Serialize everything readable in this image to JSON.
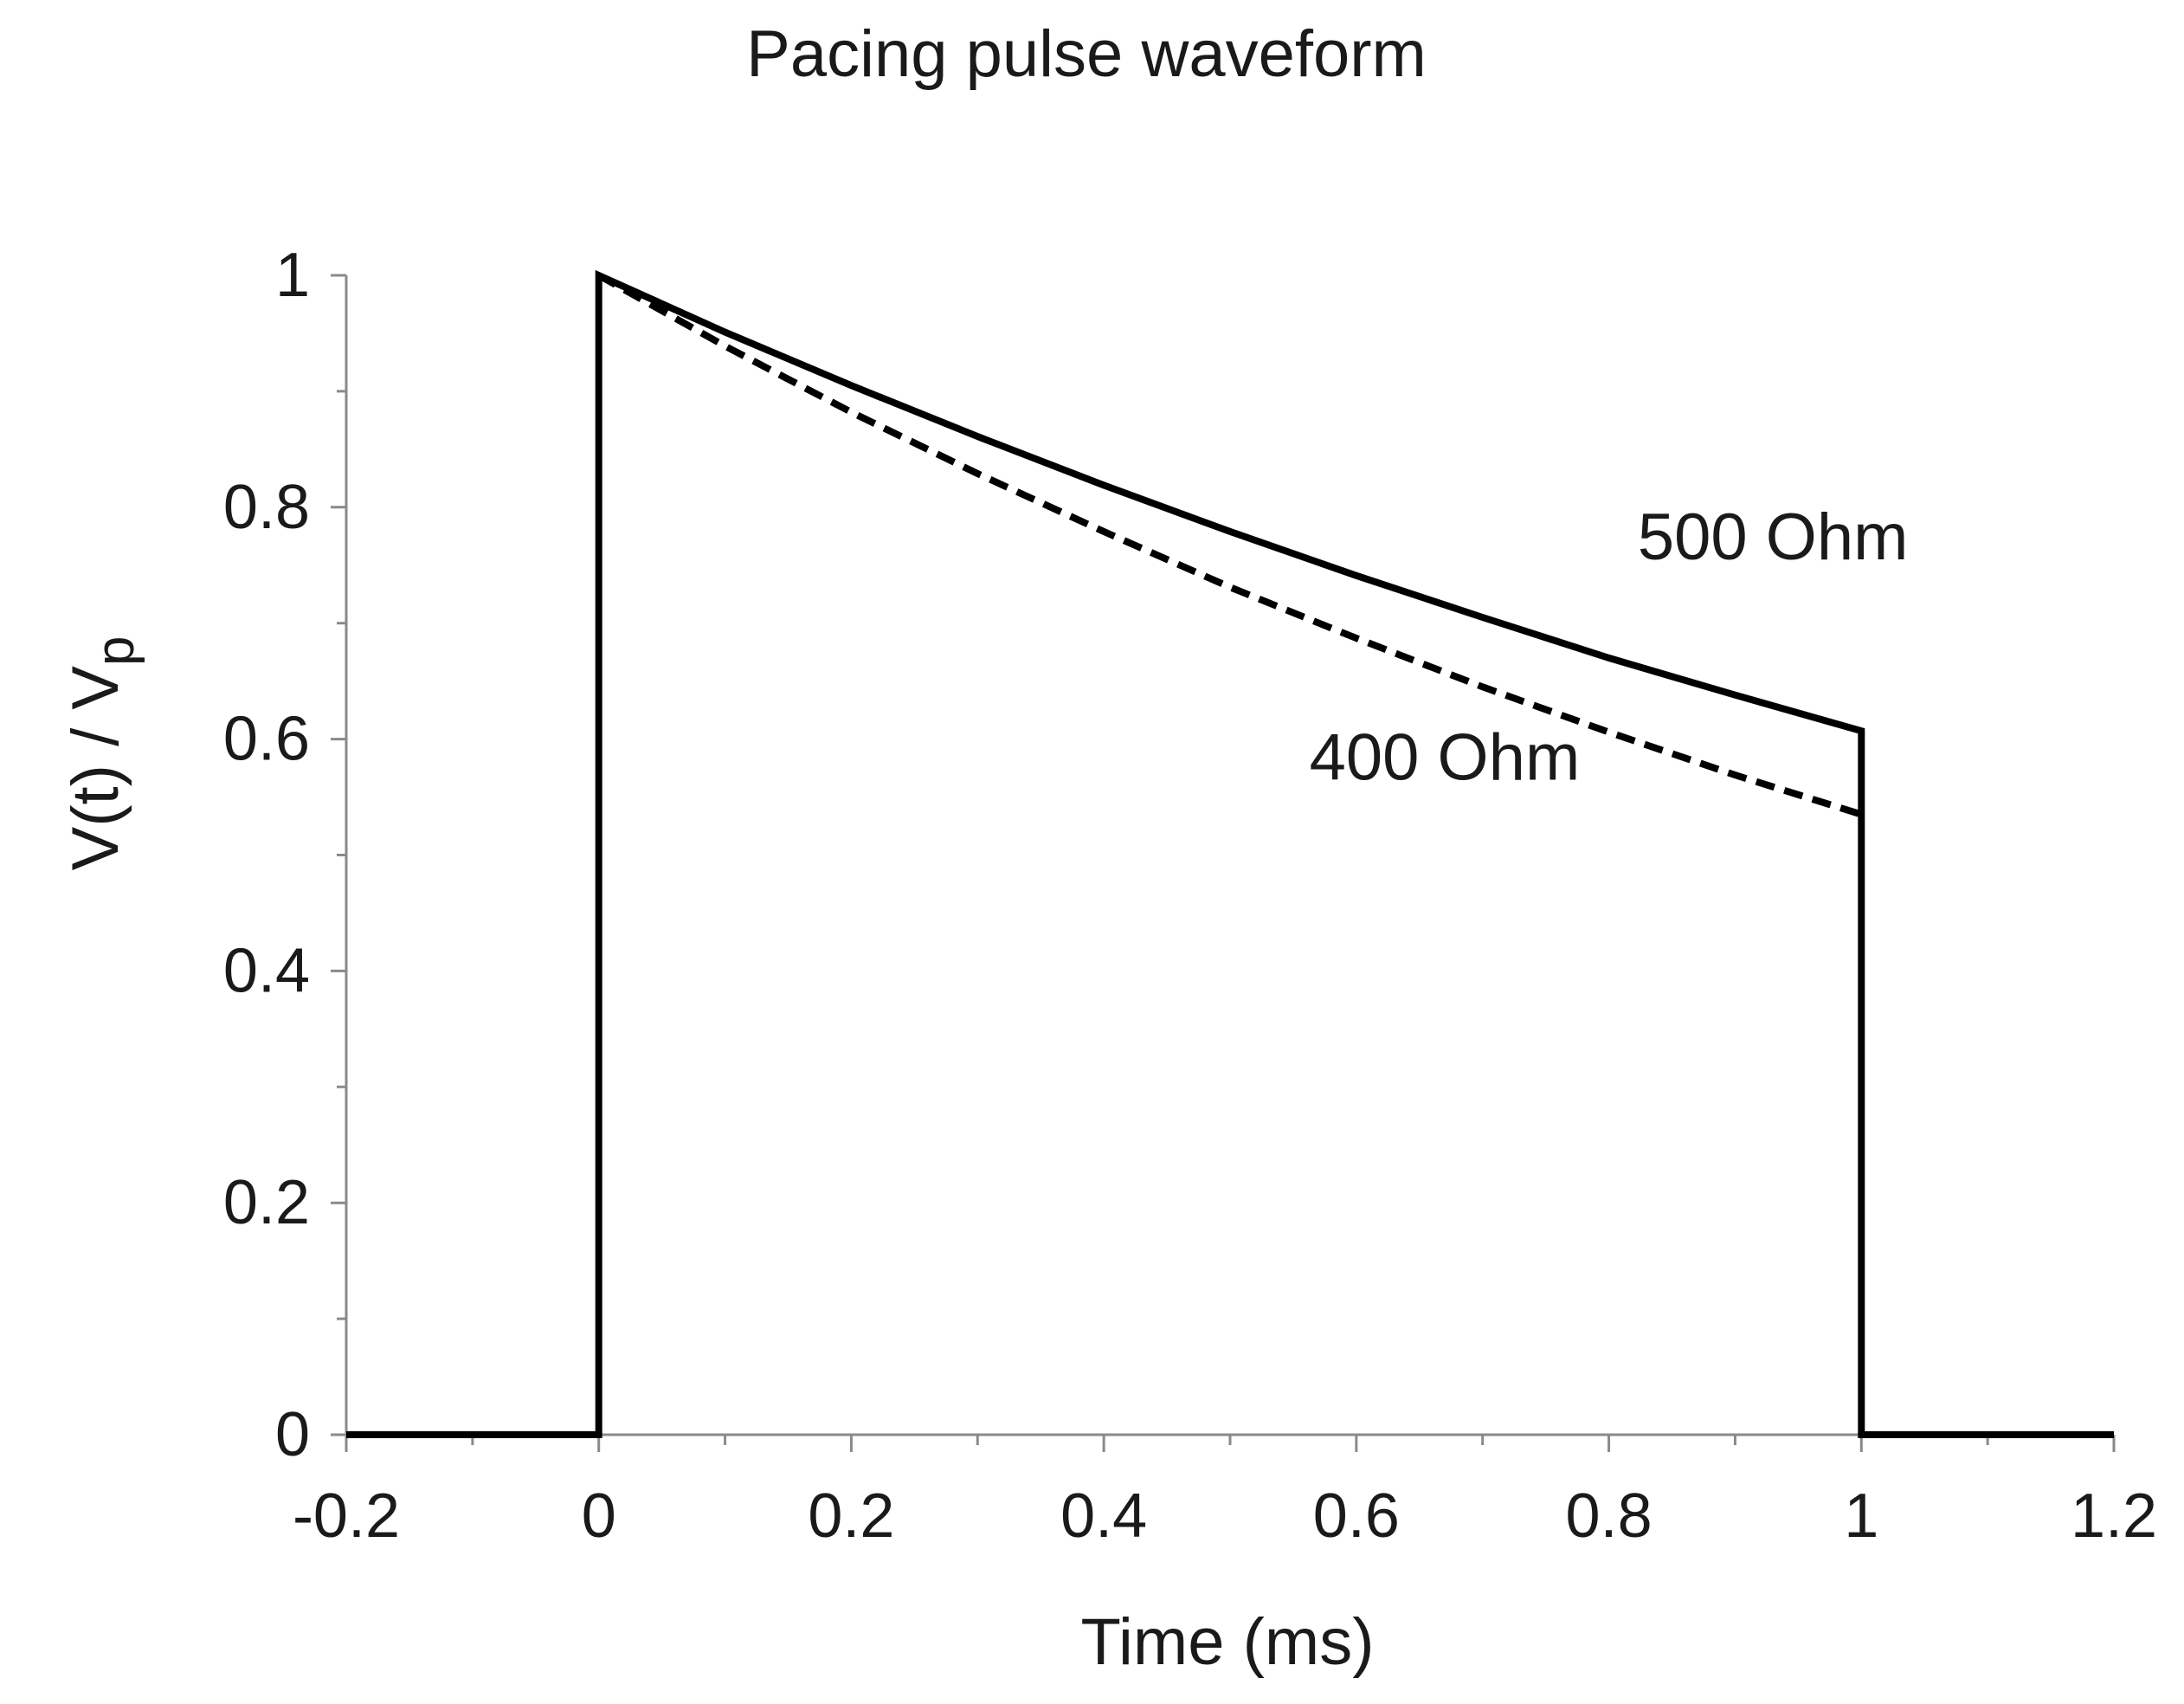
{
  "chart_data": {
    "type": "line",
    "title": "Pacing pulse waveform",
    "xlabel": "Time (ms)",
    "ylabel_main": "V(t) / V",
    "ylabel_sub": "p",
    "xlim": [
      -0.2,
      1.2
    ],
    "ylim": [
      0,
      1
    ],
    "x_ticks": [
      -0.2,
      0,
      0.2,
      0.4,
      0.6,
      0.8,
      1,
      1.2
    ],
    "x_tick_labels": [
      "-0.2",
      "0",
      "0.2",
      "0.4",
      "0.6",
      "0.8",
      "1",
      "1.2"
    ],
    "x_minor_step": 0.1,
    "y_ticks": [
      0,
      0.2,
      0.4,
      0.6,
      0.8,
      1
    ],
    "y_tick_labels": [
      "0",
      "0.2",
      "0.4",
      "0.6",
      "0.8",
      "1"
    ],
    "y_minor_step": 0.1,
    "grid": false,
    "series": [
      {
        "name": "500 Ohm",
        "style": "solid",
        "color": "#000000",
        "x": [
          -0.2,
          0,
          0,
          0.1,
          0.2,
          0.3,
          0.4,
          0.5,
          0.6,
          0.7,
          0.8,
          0.9,
          1.0,
          1.0,
          1.2
        ],
        "y": [
          0,
          0,
          1.0,
          0.951,
          0.905,
          0.861,
          0.819,
          0.779,
          0.741,
          0.705,
          0.67,
          0.638,
          0.607,
          0,
          0
        ]
      },
      {
        "name": "400 Ohm",
        "style": "dashed",
        "color": "#000000",
        "x": [
          0,
          0.1,
          0.2,
          0.3,
          0.4,
          0.5,
          0.6,
          0.7,
          0.8,
          0.9,
          1.0
        ],
        "y": [
          1.0,
          0.939,
          0.882,
          0.829,
          0.779,
          0.731,
          0.687,
          0.645,
          0.606,
          0.569,
          0.535
        ]
      }
    ],
    "annotations": [
      {
        "text": "500 Ohm",
        "x": 0.93,
        "y": 0.755
      },
      {
        "text": "400 Ohm",
        "x": 0.67,
        "y": 0.565
      }
    ]
  }
}
